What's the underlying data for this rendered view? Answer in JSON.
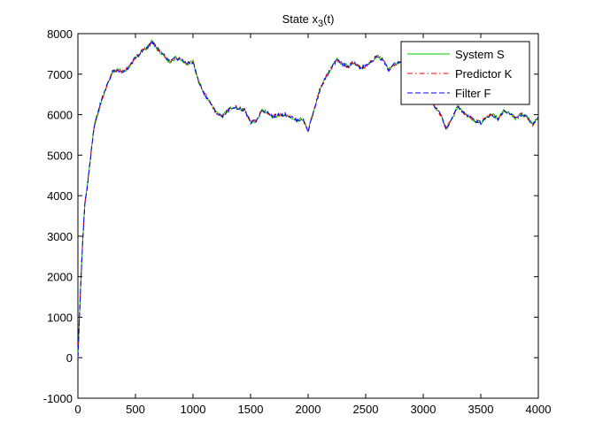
{
  "chart_data": {
    "type": "line",
    "title_main": "State x",
    "title_sub": "3",
    "title_tail": "(t)",
    "xlim": [
      0,
      4000
    ],
    "ylim": [
      -1000,
      8000
    ],
    "x_ticks": [
      0,
      500,
      1000,
      1500,
      2000,
      2500,
      3000,
      3500,
      4000
    ],
    "y_ticks": [
      -1000,
      0,
      1000,
      2000,
      3000,
      4000,
      5000,
      6000,
      7000,
      8000
    ],
    "x_tick_labels": [
      "0",
      "500",
      "1000",
      "1500",
      "2000",
      "2500",
      "3000",
      "3500",
      "4000"
    ],
    "y_tick_labels": [
      "-1000",
      "0",
      "1000",
      "2000",
      "3000",
      "4000",
      "5000",
      "6000",
      "7000",
      "8000"
    ],
    "legend_position": "top-right",
    "series": [
      {
        "name": "System S",
        "color": "#00cc00",
        "dash": "solid"
      },
      {
        "name": "Predictor K",
        "color": "#ff0000",
        "dash": "dashdot"
      },
      {
        "name": "Filter F",
        "color": "#0000ff",
        "dash": "dashed"
      }
    ],
    "x": [
      0,
      20,
      40,
      60,
      80,
      100,
      120,
      140,
      160,
      180,
      200,
      250,
      300,
      350,
      400,
      450,
      500,
      550,
      600,
      640,
      660,
      680,
      700,
      750,
      800,
      850,
      900,
      950,
      1000,
      1050,
      1100,
      1150,
      1200,
      1250,
      1300,
      1350,
      1400,
      1450,
      1500,
      1550,
      1600,
      1650,
      1700,
      1750,
      1800,
      1850,
      1900,
      1950,
      2000,
      2050,
      2100,
      2150,
      2200,
      2250,
      2300,
      2350,
      2400,
      2450,
      2500,
      2550,
      2600,
      2650,
      2700,
      2750,
      2800,
      2850,
      2900,
      2950,
      3000,
      3050,
      3100,
      3150,
      3200,
      3250,
      3300,
      3350,
      3400,
      3450,
      3500,
      3550,
      3600,
      3650,
      3700,
      3750,
      3800,
      3850,
      3900,
      3950,
      4000
    ],
    "y": [
      0,
      1500,
      2800,
      3800,
      4200,
      4700,
      5200,
      5700,
      5900,
      6100,
      6300,
      6700,
      7050,
      7100,
      7050,
      7200,
      7400,
      7550,
      7650,
      7800,
      7750,
      7650,
      7600,
      7450,
      7300,
      7400,
      7350,
      7250,
      7300,
      6800,
      6500,
      6300,
      6050,
      5950,
      6100,
      6200,
      6150,
      6100,
      5800,
      5850,
      6100,
      6050,
      5950,
      6000,
      6000,
      5950,
      5850,
      5900,
      5600,
      6100,
      6600,
      6900,
      7150,
      7350,
      7250,
      7200,
      7300,
      7150,
      7200,
      7300,
      7450,
      7350,
      7100,
      7250,
      7300,
      7200,
      7200,
      7100,
      6800,
      6500,
      6200,
      6000,
      5650,
      5900,
      6200,
      6050,
      5950,
      5850,
      5800,
      5950,
      6000,
      5900,
      6100,
      6050,
      5900,
      6000,
      5950,
      5750,
      5950
    ]
  }
}
